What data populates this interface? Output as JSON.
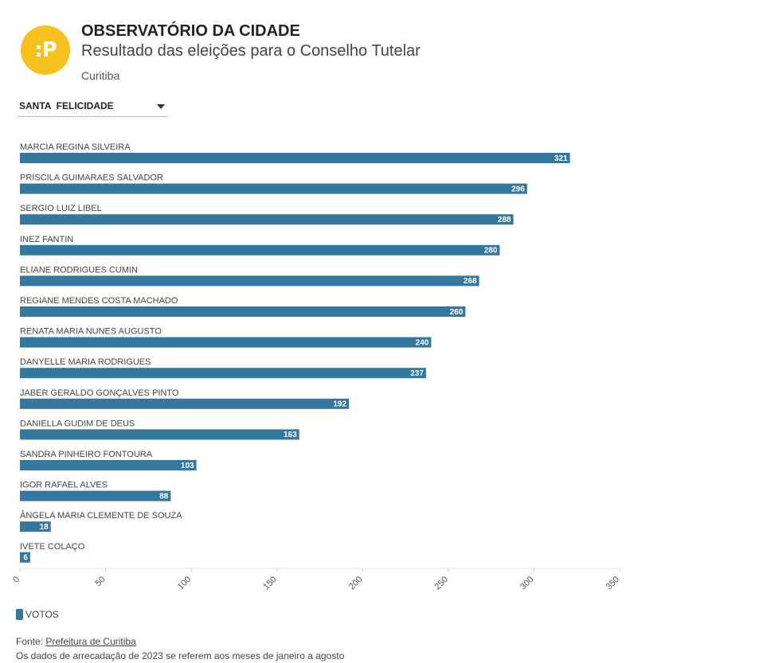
{
  "header": {
    "logo_text": ":P",
    "title": "OBSERVATÓRIO DA CIDADE",
    "subtitle": "Resultado das eleições para o Conselho Tutelar",
    "place": "Curitiba"
  },
  "filter": {
    "selected": "SANTA  FELICIDADE"
  },
  "chart_data": {
    "type": "bar",
    "orientation": "horizontal",
    "categories": [
      "MARCIA REGINA SILVEIRA",
      "PRISCILA GUIMARAES SALVADOR",
      "SERGIO LUIZ LIBEL",
      "INEZ FANTIN",
      "ELIANE RODRIGUES CUMIN",
      "REGIANE MENDES COSTA MACHADO",
      "RENATA MARIA NUNES AUGUSTO",
      "DANYELLE MARIA RODRIGUES",
      "JABER GERALDO GONÇALVES PINTO",
      "DANIELLA GUDIM DE DEUS",
      "SANDRA PINHEIRO FONTOURA",
      "IGOR RAFAEL ALVES",
      "ÂNGELA MARIA CLEMENTE DE SOUZA",
      "IVETE COLAÇO"
    ],
    "series": [
      {
        "name": "VOTOS",
        "values": [
          321,
          296,
          288,
          280,
          268,
          260,
          240,
          237,
          192,
          163,
          103,
          88,
          18,
          6
        ]
      }
    ],
    "xlim": [
      0,
      350
    ],
    "xticks": [
      0,
      50,
      100,
      150,
      200,
      250,
      300,
      350
    ],
    "grid": false,
    "legend_position": "bottom-left",
    "bar_color": "#35789f"
  },
  "legend": {
    "label": "VOTOS"
  },
  "footer": {
    "source_prefix": "Fonte:",
    "source_name": "Prefeitura de Curitiba",
    "note": "Os dados de arrecadação de 2023 se referem aos meses de janeiro a agosto"
  }
}
